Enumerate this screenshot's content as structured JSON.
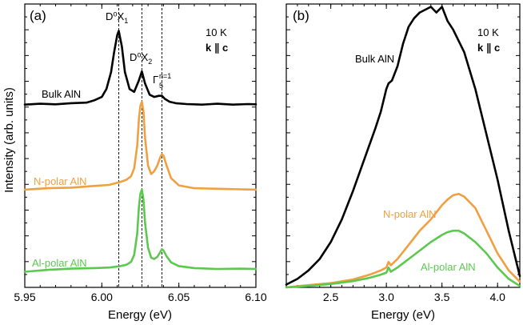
{
  "y_axis_title": "Intensity (arb. units)",
  "chart_data": [
    {
      "type": "line",
      "panel": "(a)",
      "xlabel": "Energy (eV)",
      "ylabel": "Intensity (arb. units)",
      "xlim": [
        5.95,
        6.1
      ],
      "ylim": [
        0,
        1
      ],
      "x_ticks": [
        5.95,
        6.0,
        6.05,
        6.1
      ],
      "x_tick_labels": [
        "5.95",
        "6.00",
        "6.05",
        "6.10"
      ],
      "annotations": {
        "temperature": "10 K",
        "polarization": "k ∥ c",
        "peak1_main": "D⁰X",
        "peak1_sub": "1",
        "peak2_main": "D⁰X",
        "peak2_sub": "2",
        "peak3_main": "Γ",
        "peak3_sub": "5",
        "peak3_sup": "n=1"
      },
      "reference_lines_ev": [
        6.011,
        6.026,
        6.039
      ],
      "series": [
        {
          "name": "Bulk AlN",
          "color": "#000000",
          "x": [
            5.95,
            5.96,
            5.97,
            5.98,
            5.99,
            5.995,
            6.0,
            6.003,
            6.006,
            6.008,
            6.01,
            6.011,
            6.013,
            6.015,
            6.018,
            6.021,
            6.024,
            6.026,
            6.028,
            6.031,
            6.034,
            6.037,
            6.039,
            6.041,
            6.044,
            6.048,
            6.055,
            6.065,
            6.075,
            6.085,
            6.095,
            6.1
          ],
          "values": [
            0.645,
            0.648,
            0.646,
            0.65,
            0.652,
            0.66,
            0.672,
            0.7,
            0.76,
            0.83,
            0.89,
            0.905,
            0.85,
            0.76,
            0.7,
            0.69,
            0.73,
            0.762,
            0.72,
            0.68,
            0.672,
            0.676,
            0.676,
            0.665,
            0.655,
            0.65,
            0.647,
            0.645,
            0.648,
            0.645,
            0.647,
            0.646
          ]
        },
        {
          "name": "N-polar AlN",
          "color": "#F0A040",
          "x": [
            5.95,
            5.965,
            5.98,
            5.995,
            6.005,
            6.012,
            6.016,
            6.019,
            6.021,
            6.023,
            6.024,
            6.025,
            6.026,
            6.027,
            6.028,
            6.03,
            6.032,
            6.034,
            6.036,
            6.038,
            6.039,
            6.04,
            6.042,
            6.045,
            6.05,
            6.06,
            6.075,
            6.09,
            6.1
          ],
          "values": [
            0.345,
            0.35,
            0.352,
            0.358,
            0.362,
            0.372,
            0.38,
            0.392,
            0.42,
            0.5,
            0.59,
            0.64,
            0.655,
            0.62,
            0.53,
            0.43,
            0.4,
            0.41,
            0.43,
            0.46,
            0.47,
            0.465,
            0.43,
            0.385,
            0.36,
            0.35,
            0.348,
            0.346,
            0.345
          ]
        },
        {
          "name": "Al-polar AlN",
          "color": "#5CC850",
          "x": [
            5.95,
            5.965,
            5.98,
            5.995,
            6.005,
            6.012,
            6.016,
            6.019,
            6.021,
            6.023,
            6.024,
            6.025,
            6.026,
            6.027,
            6.028,
            6.03,
            6.032,
            6.034,
            6.036,
            6.038,
            6.039,
            6.04,
            6.042,
            6.045,
            6.05,
            6.06,
            6.075,
            6.09,
            6.1
          ],
          "values": [
            0.055,
            0.062,
            0.066,
            0.068,
            0.07,
            0.075,
            0.08,
            0.09,
            0.115,
            0.19,
            0.28,
            0.33,
            0.345,
            0.31,
            0.23,
            0.14,
            0.105,
            0.1,
            0.108,
            0.125,
            0.135,
            0.13,
            0.11,
            0.088,
            0.075,
            0.068,
            0.065,
            0.066,
            0.065
          ]
        }
      ]
    },
    {
      "type": "line",
      "panel": "(b)",
      "xlabel": "Energy (eV)",
      "ylabel": "",
      "xlim": [
        2.1,
        4.2
      ],
      "ylim": [
        0,
        1
      ],
      "x_ticks": [
        2.5,
        3.0,
        3.5,
        4.0
      ],
      "x_tick_labels": [
        "2.5",
        "3.0",
        "3.5",
        "4.0"
      ],
      "annotations": {
        "temperature": "10 K",
        "polarization": "k ∥ c"
      },
      "series": [
        {
          "name": "Bulk AlN",
          "color": "#000000",
          "x": [
            2.1,
            2.2,
            2.3,
            2.4,
            2.5,
            2.6,
            2.7,
            2.8,
            2.9,
            2.95,
            3.0,
            3.02,
            3.05,
            3.1,
            3.15,
            3.2,
            3.25,
            3.3,
            3.35,
            3.4,
            3.45,
            3.5,
            3.55,
            3.6,
            3.7,
            3.8,
            3.9,
            4.0,
            4.1,
            4.2
          ],
          "values": [
            0.01,
            0.03,
            0.06,
            0.1,
            0.16,
            0.24,
            0.34,
            0.45,
            0.56,
            0.62,
            0.7,
            0.72,
            0.73,
            0.78,
            0.86,
            0.92,
            0.95,
            0.97,
            0.98,
            0.99,
            0.97,
            0.99,
            0.94,
            0.91,
            0.83,
            0.7,
            0.54,
            0.38,
            0.2,
            0.04
          ]
        },
        {
          "name": "N-polar AlN",
          "color": "#F0A040",
          "x": [
            2.1,
            2.3,
            2.5,
            2.7,
            2.85,
            2.95,
            3.0,
            3.02,
            3.04,
            3.1,
            3.2,
            3.3,
            3.4,
            3.5,
            3.55,
            3.6,
            3.65,
            3.7,
            3.8,
            3.9,
            4.0,
            4.1,
            4.2
          ],
          "values": [
            0.0,
            0.008,
            0.015,
            0.028,
            0.045,
            0.06,
            0.07,
            0.09,
            0.078,
            0.1,
            0.15,
            0.2,
            0.24,
            0.29,
            0.31,
            0.325,
            0.33,
            0.32,
            0.28,
            0.2,
            0.12,
            0.06,
            0.02
          ]
        },
        {
          "name": "Al-polar AlN",
          "color": "#5CC850",
          "x": [
            2.1,
            2.3,
            2.5,
            2.7,
            2.85,
            2.95,
            3.0,
            3.02,
            3.04,
            3.1,
            3.2,
            3.3,
            3.4,
            3.5,
            3.55,
            3.6,
            3.65,
            3.7,
            3.8,
            3.9,
            4.0,
            4.1,
            4.2
          ],
          "values": [
            0.0,
            0.005,
            0.012,
            0.022,
            0.034,
            0.045,
            0.052,
            0.07,
            0.055,
            0.07,
            0.1,
            0.13,
            0.16,
            0.185,
            0.195,
            0.2,
            0.2,
            0.19,
            0.16,
            0.12,
            0.07,
            0.03,
            0.005
          ]
        }
      ]
    }
  ]
}
